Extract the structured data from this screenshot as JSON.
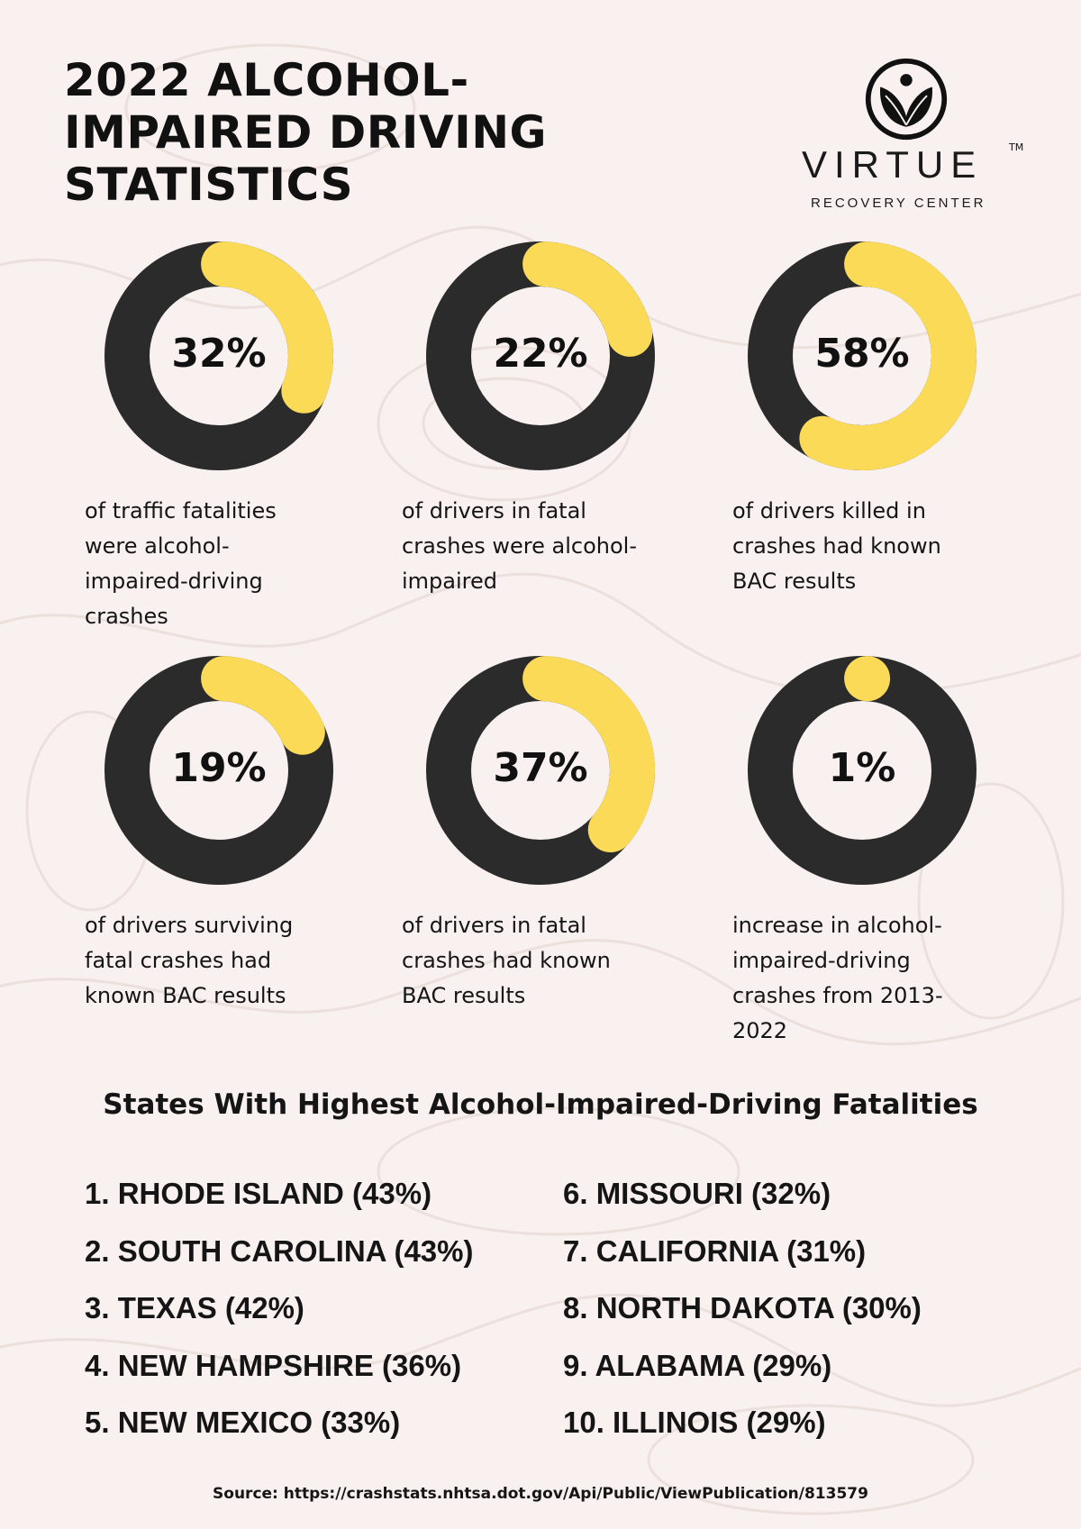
{
  "title": [
    "2022 ALCOHOL-",
    "IMPAIRED DRIVING",
    "STATISTICS"
  ],
  "logo": {
    "name": "VIRTUE",
    "tm": "TM",
    "subtitle": "RECOVERY CENTER"
  },
  "colors": {
    "background": "#f9f1ef",
    "ring": "#2b2b2b",
    "highlight": "#fbda58"
  },
  "stats": [
    {
      "value": 32,
      "label": "32%",
      "caption": [
        "of traffic fatalities",
        "were alcohol-",
        "impaired-driving",
        "crashes"
      ]
    },
    {
      "value": 22,
      "label": "22%",
      "caption": [
        "of drivers in fatal",
        "crashes were alcohol-",
        "impaired"
      ]
    },
    {
      "value": 58,
      "label": "58%",
      "caption": [
        "of drivers killed in",
        "crashes had known",
        "BAC results"
      ]
    },
    {
      "value": 19,
      "label": "19%",
      "caption": [
        "of drivers surviving",
        "fatal crashes had",
        "known BAC results"
      ]
    },
    {
      "value": 37,
      "label": "37%",
      "caption": [
        "of drivers in fatal",
        "crashes had known",
        "BAC results"
      ]
    },
    {
      "value": 1,
      "label": "1%",
      "caption": [
        "increase in alcohol-",
        "impaired-driving",
        "crashes from 2013-",
        "2022"
      ]
    }
  ],
  "states_heading": "States With Highest Alcohol-Impaired-Driving Fatalities",
  "states": [
    "1. RHODE ISLAND (43%)",
    "2. SOUTH CAROLINA (43%)",
    "3. TEXAS (42%)",
    "4. NEW HAMPSHIRE (36%)",
    "5. NEW MEXICO (33%)",
    "6. MISSOURI (32%)",
    "7. CALIFORNIA (31%)",
    "8. NORTH DAKOTA (30%)",
    "9. ALABAMA (29%)",
    "10. ILLINOIS (29%)"
  ],
  "source": "Source: https://crashstats.nhtsa.dot.gov/Api/Public/ViewPublication/813579"
}
